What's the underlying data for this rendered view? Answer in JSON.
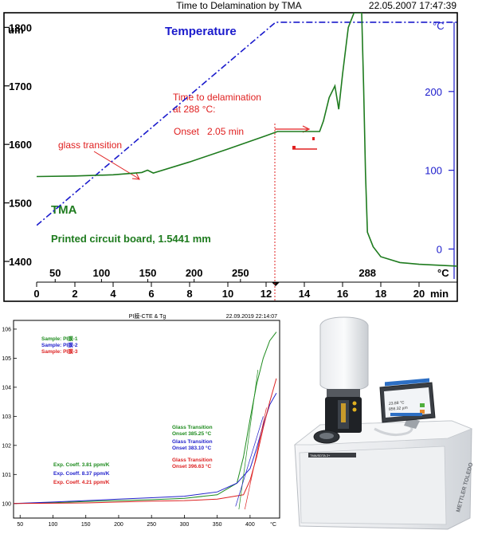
{
  "chart_data": [
    {
      "type": "line",
      "title": "Time to Delamination by TMA",
      "timestamp": "22.05.2007 17:47:39",
      "xlabel": "min",
      "ylabel": "um",
      "y2label": "°C",
      "xlim": [
        0,
        22
      ],
      "ylim": [
        1370,
        1825
      ],
      "y2lim": [
        -38,
        300
      ],
      "x_ticks": [
        "0",
        "2",
        "4",
        "6",
        "8",
        "10",
        "12",
        "14",
        "16",
        "18",
        "20"
      ],
      "y_ticks": [
        "1400",
        "1500",
        "1600",
        "1700",
        "1800"
      ],
      "y2_ticks": [
        "0",
        "100",
        "200"
      ],
      "temperature_scale": {
        "label": "°C",
        "ticks": [
          "50",
          "100",
          "150",
          "200",
          "250",
          "288"
        ]
      },
      "labels": {
        "temperature": "Temperature",
        "tma": "TMA",
        "sample": "Printed circuit board, 1.5441 mm",
        "glass": "glass transition",
        "delam_line1": "Time to delamination",
        "delam_line2": "at 288 °C:",
        "onset": "Onset   2.05 min"
      },
      "series": [
        {
          "name": "Temperature",
          "axis": "right",
          "color": "#1a1acc",
          "x": [
            0,
            12.5,
            22
          ],
          "y": [
            30,
            288,
            288
          ]
        },
        {
          "name": "TMA",
          "axis": "left",
          "color": "#1e7b1e",
          "x": [
            0,
            2,
            4,
            5.5,
            5.8,
            6.1,
            8,
            10,
            12,
            12.6,
            14,
            14.8,
            15,
            15.3,
            15.6,
            15.8,
            16,
            16.3,
            16.6,
            17,
            17.1,
            17.2,
            17.3,
            17.6,
            18,
            19,
            20,
            22
          ],
          "y": [
            1545,
            1546,
            1548,
            1552,
            1556,
            1551,
            1570,
            1592,
            1615,
            1622,
            1622,
            1622,
            1640,
            1680,
            1700,
            1660,
            1720,
            1800,
            1825,
            1825,
            1700,
            1550,
            1450,
            1425,
            1408,
            1398,
            1395,
            1392
          ]
        }
      ]
    },
    {
      "type": "line",
      "title": "PI膜-CTE & Tg",
      "timestamp": "22.09.2019 22:14:07",
      "xlabel": "°C",
      "xlim": [
        40,
        445
      ],
      "ylim": [
        99.5,
        106.3
      ],
      "x_ticks": [
        "50",
        "100",
        "150",
        "200",
        "250",
        "300",
        "350",
        "400",
        "°C"
      ],
      "y_ticks": [
        "100",
        "101",
        "102",
        "103",
        "104",
        "105",
        "106"
      ],
      "series": [
        {
          "name": "Sample: PI膜-1",
          "color": "#1e8b1e",
          "coeff": "Exp. Coeff.    3.81 ppm/K",
          "transition": [
            "Glass Transition",
            "Onset    385.25 °C"
          ],
          "x": [
            40,
            100,
            150,
            200,
            250,
            300,
            350,
            380,
            390,
            400,
            410,
            420,
            430,
            440
          ],
          "y": [
            100,
            100.03,
            100.07,
            100.1,
            100.13,
            100.18,
            100.3,
            100.7,
            101.6,
            102.9,
            104.1,
            105,
            105.6,
            105.9
          ]
        },
        {
          "name": "Sample: PI膜-2",
          "color": "#2222cc",
          "coeff": "Exp. Coeff.    8.37 ppm/K",
          "transition": [
            "Glass Transition",
            "Onset    383.10 °C"
          ],
          "x": [
            40,
            100,
            150,
            200,
            250,
            300,
            350,
            380,
            400,
            410,
            420,
            430,
            440
          ],
          "y": [
            100,
            100.05,
            100.1,
            100.15,
            100.2,
            100.25,
            100.4,
            100.7,
            101.2,
            101.9,
            102.7,
            103.4,
            103.8
          ]
        },
        {
          "name": "Sample: PI膜-3",
          "color": "#dd2222",
          "coeff": "Exp. Coeff.    4.21 ppm/K",
          "transition": [
            "Glass Transition",
            "Onset    396.63 °C"
          ],
          "x": [
            40,
            100,
            150,
            200,
            250,
            300,
            350,
            390,
            400,
            410,
            420,
            430,
            440
          ],
          "y": [
            100,
            100.01,
            100.02,
            100.05,
            100.08,
            100.1,
            100.15,
            100.3,
            100.8,
            101.6,
            102.6,
            103.5,
            104.3
          ]
        }
      ]
    }
  ],
  "instrument": {
    "brand": "METTLER TOLEDO",
    "model": "TMA/SDTA 2+",
    "screen": {
      "line1": "23.88 °C",
      "line2": "856.32 µm"
    },
    "colors": {
      "body": "#e9ecef",
      "dark": "#2c2f33",
      "screen": "#2d6fc4"
    }
  }
}
